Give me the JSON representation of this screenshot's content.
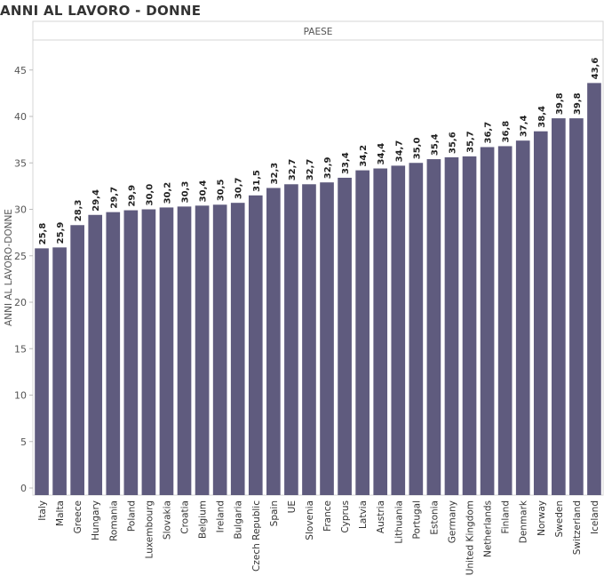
{
  "title": "ANNI AL LAVORO - DONNE",
  "chart_data": {
    "type": "bar",
    "header": "PAESE",
    "ylabel": "ANNI AL LAVORO-DONNE",
    "ylim": [
      0,
      48
    ],
    "yticks": [
      0,
      5,
      10,
      15,
      20,
      25,
      30,
      35,
      40,
      45
    ],
    "grid": false,
    "bar_color": "#5f5b7e",
    "categories": [
      "Italy",
      "Malta",
      "Greece",
      "Hungary",
      "Romania",
      "Poland",
      "Luxembourg",
      "Slovakia",
      "Croatia",
      "Belgium",
      "Ireland",
      "Bulgaria",
      "Czech Republic",
      "Spain",
      "UE",
      "Slovenia",
      "France",
      "Cyprus",
      "Latvia",
      "Austria",
      "Lithuania",
      "Portugal",
      "Estonia",
      "Germany",
      "United Kingdom",
      "Netherlands",
      "Finland",
      "Denmark",
      "Norway",
      "Sweden",
      "Switzerland",
      "Iceland"
    ],
    "values": [
      25.8,
      25.9,
      28.3,
      29.4,
      29.7,
      29.9,
      30.0,
      30.2,
      30.3,
      30.4,
      30.5,
      30.7,
      31.5,
      32.3,
      32.7,
      32.7,
      32.9,
      33.4,
      34.2,
      34.4,
      34.7,
      35.0,
      35.4,
      35.6,
      35.7,
      36.7,
      36.8,
      37.4,
      38.4,
      39.8,
      39.8,
      43.6
    ],
    "value_labels": [
      "25,8",
      "25,9",
      "28,3",
      "29,4",
      "29,7",
      "29,9",
      "30,0",
      "30,2",
      "30,3",
      "30,4",
      "30,5",
      "30,7",
      "31,5",
      "32,3",
      "32,7",
      "32,7",
      "32,9",
      "33,4",
      "34,2",
      "34,4",
      "34,7",
      "35,0",
      "35,4",
      "35,6",
      "35,7",
      "36,7",
      "36,8",
      "37,4",
      "38,4",
      "39,8",
      "39,8",
      "43,6"
    ]
  }
}
